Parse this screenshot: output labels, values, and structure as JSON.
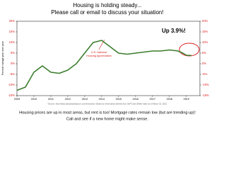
{
  "chart_data": {
    "type": "line",
    "title": "Housing is holding steady...",
    "subtitle": "Please call or email to discuss your situation!",
    "y_label": "Percent change year over year",
    "x": [
      2009,
      2009.5,
      2010,
      2010.5,
      2011,
      2011.5,
      2012,
      2012.5,
      2013,
      2013.5,
      2014,
      2014.5,
      2015,
      2015.5,
      2016,
      2016.5,
      2017,
      2017.5,
      2018,
      2018.5,
      2018.8,
      2019,
      2019.3
    ],
    "values": [
      -12.5,
      -11,
      -4,
      -1,
      -4,
      -4.5,
      -3,
      0,
      5,
      10,
      11,
      8,
      5,
      4.5,
      5,
      5.5,
      6,
      6,
      6.5,
      6,
      5,
      4,
      3.9
    ],
    "color": "#3a7d2c",
    "xlim": [
      2009,
      2019.8
    ],
    "xticks": [
      2009,
      2010,
      2011,
      2012,
      2013,
      2014,
      2015,
      2016,
      2017,
      2018,
      2019
    ],
    "ylim": [
      -15,
      20
    ],
    "yticks": [
      {
        "value": -15,
        "label": "-15%"
      },
      {
        "value": -10,
        "label": "-10%"
      },
      {
        "value": -5,
        "label": "-5%"
      },
      {
        "value": 0,
        "label": "0%"
      },
      {
        "value": 5,
        "label": "5%"
      },
      {
        "value": 10,
        "label": "10%"
      },
      {
        "value": 15,
        "label": "15%"
      },
      {
        "value": 20,
        "label": "20%"
      }
    ],
    "y2lim": [
      -15,
      20
    ],
    "y2ticks": [
      {
        "value": -15,
        "label": "-15%"
      },
      {
        "value": -10,
        "label": "-10%"
      },
      {
        "value": -5,
        "label": "-5%"
      },
      {
        "value": 0,
        "label": "0%"
      },
      {
        "value": 5,
        "label": "5%"
      },
      {
        "value": 10,
        "label": "10%"
      },
      {
        "value": 15,
        "label": "15%"
      },
      {
        "value": 20,
        "label": "20%"
      }
    ],
    "annotations": [
      "U.S. National",
      "Housing Appreciation",
      "Up 3.9%!"
    ],
    "source": "*Source: http://www.standardandpoors.com/homeprice. Based on information derived from S&P Case Shiller Index as of March 31, 2022.",
    "footer": [
      "Housing prices are up in most areas, but rent is too! Mortgage rates remain low (but are trending up)!",
      "Call and see if a new home might make sense."
    ]
  }
}
